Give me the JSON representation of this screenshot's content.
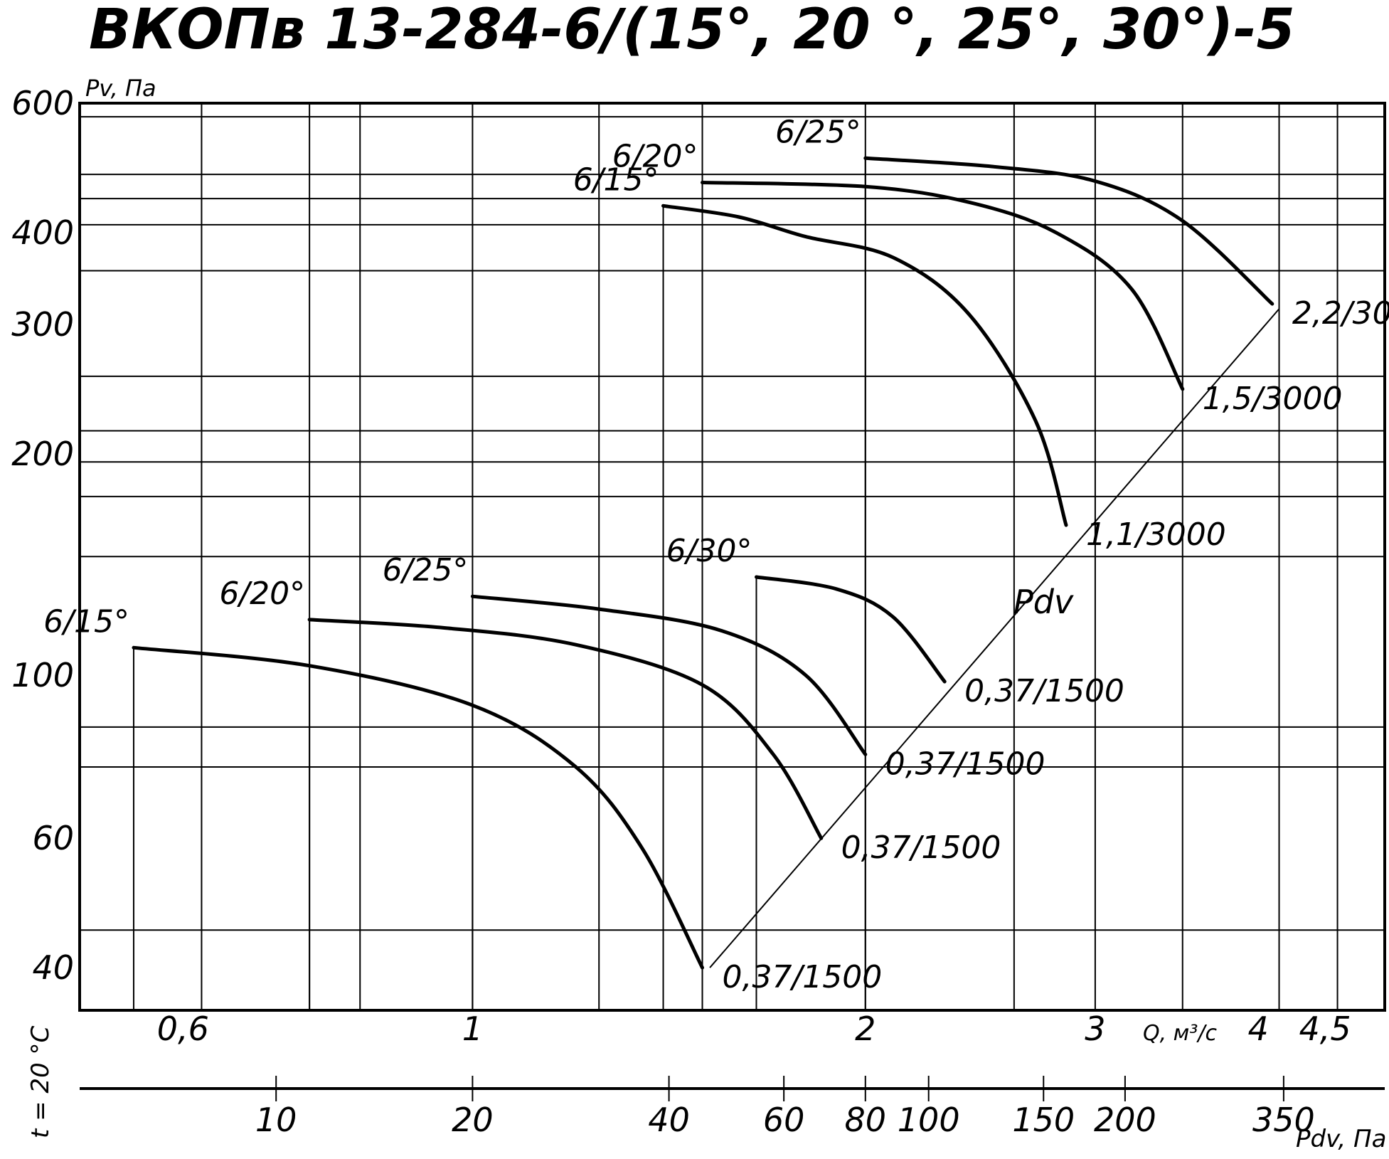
{
  "chart_data": {
    "type": "line",
    "title": "ВКОПв 13-284-6/(15°, 20 °, 25°, 30°)-5",
    "ylabel": "Pv, Па",
    "xlabel": "Q, м³/с",
    "side_label": "t = 20 °C",
    "pdv_axis_label": "Pdv, Па",
    "pdv_line_label": "Pdv",
    "y_scale": "log",
    "x_scale": "log",
    "ylim": [
      35,
      600
    ],
    "xlim": [
      0.5,
      5.0
    ],
    "y_ticks": [
      {
        "value": 600,
        "label": "600"
      },
      {
        "value": 400,
        "label": "400"
      },
      {
        "value": 300,
        "label": "300"
      },
      {
        "value": 200,
        "label": "200"
      },
      {
        "value": 100,
        "label": "100"
      },
      {
        "value": 60,
        "label": "60"
      },
      {
        "value": 40,
        "label": "40"
      }
    ],
    "x_ticks": [
      {
        "value": 0.6,
        "label": "0,6"
      },
      {
        "value": 1.0,
        "label": "1"
      },
      {
        "value": 2.0,
        "label": "2"
      },
      {
        "value": 3.0,
        "label": "3"
      },
      {
        "value": 4.0,
        "label": "4"
      },
      {
        "value": 4.5,
        "label": "4,5"
      }
    ],
    "pdv_ticks": [
      {
        "value": 10,
        "label": "10"
      },
      {
        "value": 20,
        "label": "20"
      },
      {
        "value": 40,
        "label": "40"
      },
      {
        "value": 60,
        "label": "60"
      },
      {
        "value": 80,
        "label": "80"
      },
      {
        "value": 100,
        "label": "100"
      },
      {
        "value": 150,
        "label": "150"
      },
      {
        "value": 200,
        "label": "200"
      },
      {
        "value": 350,
        "label": "350"
      }
    ],
    "grid_y": [
      575,
      480,
      445,
      410,
      355,
      255,
      215,
      195,
      175,
      145,
      85,
      75,
      45
    ],
    "grid_x": [
      0.62,
      0.75,
      0.82,
      1.0,
      1.25,
      1.5,
      2.0,
      2.6,
      3.0,
      3.5,
      4.15,
      4.6
    ],
    "pdv_line": [
      [
        1.52,
        40
      ],
      [
        4.15,
        315
      ]
    ],
    "series": [
      {
        "name": "6/15°",
        "end_label": "0,37/1500",
        "points": [
          [
            0.55,
            109
          ],
          [
            0.75,
            103
          ],
          [
            1.0,
            91
          ],
          [
            1.2,
            75
          ],
          [
            1.35,
            58
          ],
          [
            1.5,
            40
          ]
        ]
      },
      {
        "name": "6/20°",
        "end_label": "0,37/1500",
        "points": [
          [
            0.75,
            119
          ],
          [
            0.95,
            116
          ],
          [
            1.2,
            110
          ],
          [
            1.5,
            97
          ],
          [
            1.7,
            78
          ],
          [
            1.85,
            60
          ]
        ]
      },
      {
        "name": "6/25°",
        "end_label": "0,37/1500",
        "points": [
          [
            1.0,
            128
          ],
          [
            1.25,
            123
          ],
          [
            1.55,
            115
          ],
          [
            1.8,
            100
          ],
          [
            2.0,
            78
          ]
        ]
      },
      {
        "name": "6/30°",
        "end_label": "0,37/1500",
        "points": [
          [
            1.65,
            136
          ],
          [
            1.9,
            131
          ],
          [
            2.1,
            120
          ],
          [
            2.3,
            98
          ]
        ]
      },
      {
        "name": "6/15°",
        "end_label": "1,1/3000",
        "points": [
          [
            1.4,
            435
          ],
          [
            1.6,
            420
          ],
          [
            1.8,
            395
          ],
          [
            2.1,
            370
          ],
          [
            2.4,
            310
          ],
          [
            2.7,
            222
          ],
          [
            2.85,
            160
          ]
        ]
      },
      {
        "name": "6/20°",
        "end_label": "1,5/3000",
        "points": [
          [
            1.5,
            468
          ],
          [
            2.0,
            462
          ],
          [
            2.4,
            440
          ],
          [
            2.8,
            400
          ],
          [
            3.2,
            335
          ],
          [
            3.5,
            245
          ]
        ]
      },
      {
        "name": "6/25°",
        "end_label": "2,2/3000",
        "points": [
          [
            2.0,
            505
          ],
          [
            2.5,
            492
          ],
          [
            3.0,
            470
          ],
          [
            3.5,
            415
          ],
          [
            4.1,
            320
          ]
        ]
      }
    ]
  }
}
